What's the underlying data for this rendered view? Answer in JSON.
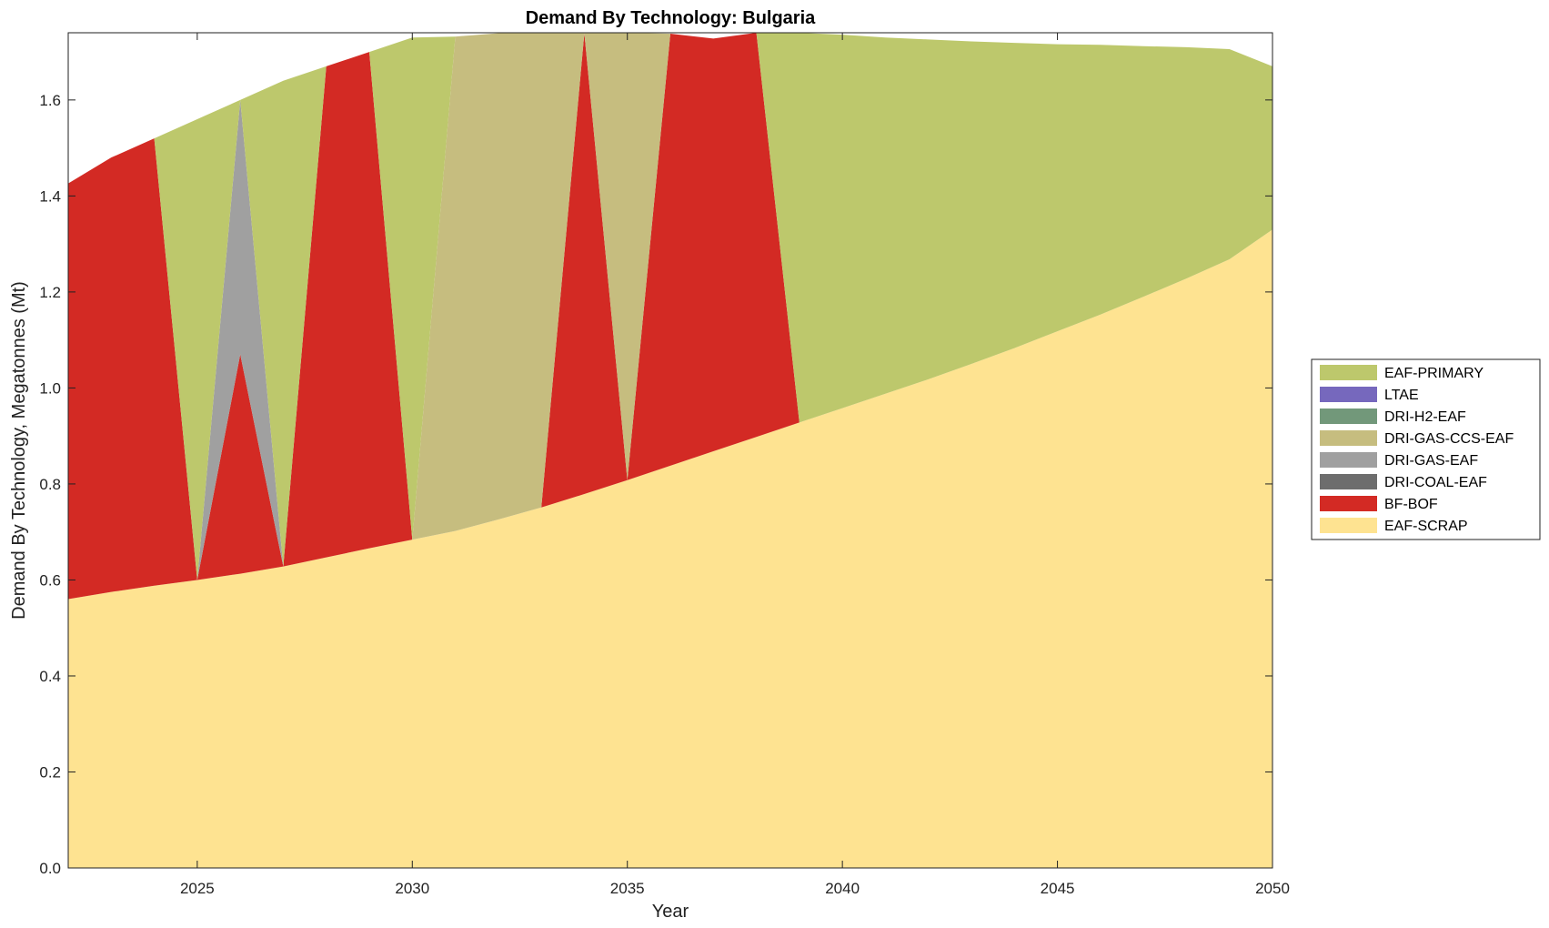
{
  "chart_data": {
    "type": "area",
    "stacked": true,
    "title": "Demand By Technology: Bulgaria",
    "xlabel": "Year",
    "ylabel": "Demand By Technology, Megatonnes (Mt)",
    "xlim": [
      2022,
      2050
    ],
    "ylim": [
      0,
      1.74
    ],
    "xticks": [
      2025,
      2030,
      2035,
      2040,
      2045,
      2050
    ],
    "yticks": [
      0.0,
      0.2,
      0.4,
      0.6,
      0.8,
      1.0,
      1.2,
      1.4,
      1.6
    ],
    "ytick_labels": [
      "0.0",
      "0.2",
      "0.4",
      "0.6",
      "0.8",
      "1.0",
      "1.2",
      "1.4",
      "1.6"
    ],
    "x": [
      2022,
      2023,
      2024,
      2025,
      2026,
      2027,
      2028,
      2029,
      2030,
      2031,
      2032,
      2033,
      2034,
      2035,
      2036,
      2037,
      2038,
      2039,
      2040,
      2041,
      2042,
      2043,
      2044,
      2045,
      2046,
      2047,
      2048,
      2049,
      2050
    ],
    "legend_position": "right",
    "grid": false,
    "series": [
      {
        "name": "EAF-SCRAP",
        "color": "#fee391",
        "values": [
          0.56,
          0.575,
          0.588,
          0.6,
          0.613,
          0.628,
          0.647,
          0.666,
          0.684,
          0.702,
          0.726,
          0.751,
          0.779,
          0.808,
          0.838,
          0.868,
          0.898,
          0.928,
          0.958,
          0.988,
          1.018,
          1.05,
          1.083,
          1.118,
          1.153,
          1.19,
          1.228,
          1.268,
          1.33
        ]
      },
      {
        "name": "BF-BOF",
        "color": "#d32a24",
        "values": [
          0.866,
          0.905,
          0.932,
          0,
          0.457,
          0,
          1.023,
          1.034,
          0,
          0,
          0,
          0,
          0.96,
          0,
          0.9,
          0.86,
          0.842,
          0,
          0,
          0,
          0,
          0,
          0,
          0,
          0,
          0,
          0,
          0,
          0
        ]
      },
      {
        "name": "DRI-COAL-EAF",
        "color": "#6d6d6d",
        "values": [
          0,
          0,
          0,
          0,
          0,
          0,
          0,
          0,
          0,
          0,
          0,
          0,
          0,
          0,
          0,
          0,
          0,
          0,
          0,
          0,
          0,
          0,
          0,
          0,
          0,
          0,
          0,
          0,
          0
        ]
      },
      {
        "name": "DRI-GAS-EAF",
        "color": "#a0a0a0",
        "values": [
          0,
          0,
          0,
          0,
          0.53,
          0,
          0,
          0,
          0,
          0,
          0,
          0,
          0,
          0,
          0,
          0,
          0,
          0,
          0,
          0,
          0,
          0,
          0,
          0,
          0,
          0,
          0,
          0,
          0
        ]
      },
      {
        "name": "DRI-GAS-CCS-EAF",
        "color": "#c6bd7f",
        "values": [
          0,
          0,
          0,
          0,
          0,
          0,
          0,
          0,
          0,
          1.03,
          1.013,
          0.988,
          0,
          0.932,
          0,
          0,
          0,
          0,
          0,
          0,
          0,
          0,
          0,
          0,
          0,
          0,
          0,
          0,
          0
        ]
      },
      {
        "name": "DRI-H2-EAF",
        "color": "#72987a",
        "values": [
          0,
          0,
          0,
          0,
          0,
          0,
          0,
          0,
          0,
          0,
          0,
          0,
          0,
          0,
          0,
          0,
          0,
          0,
          0,
          0,
          0,
          0,
          0,
          0,
          0,
          0,
          0,
          0,
          0
        ]
      },
      {
        "name": "LTAE",
        "color": "#7668bd",
        "values": [
          0,
          0,
          0,
          0,
          0,
          0,
          0,
          0,
          0,
          0,
          0,
          0,
          0,
          0,
          0,
          0,
          0,
          0,
          0,
          0,
          0,
          0,
          0,
          0,
          0,
          0,
          0,
          0,
          0
        ]
      },
      {
        "name": "EAF-PRIMARY",
        "color": "#bdc86c",
        "values": [
          0,
          0,
          0,
          0.96,
          0,
          1.012,
          0,
          0,
          1.046,
          0,
          0,
          0,
          0,
          0,
          0,
          0,
          0,
          0.812,
          0.778,
          0.742,
          0.708,
          0.672,
          0.636,
          0.598,
          0.562,
          0.522,
          0.482,
          0.438,
          0.34
        ]
      }
    ]
  }
}
